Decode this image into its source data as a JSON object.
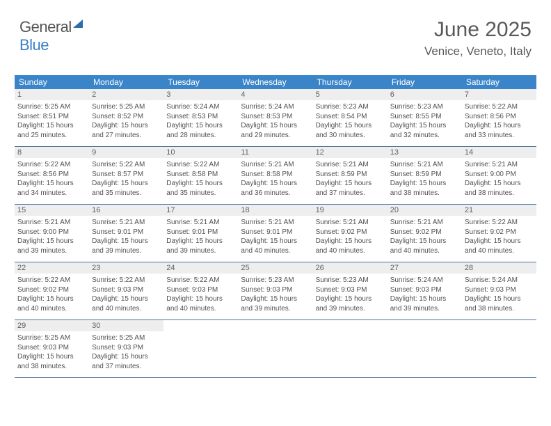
{
  "logo": {
    "text_general": "General",
    "text_blue": "Blue"
  },
  "header": {
    "title": "June 2025",
    "location": "Venice, Veneto, Italy"
  },
  "colors": {
    "header_bg": "#3a85c9",
    "header_text": "#ffffff",
    "daynum_bg": "#eeeeee",
    "week_border": "#4a74a0",
    "text": "#505050",
    "title_text": "#595959",
    "logo_blue": "#3a7fc4"
  },
  "weekdays": [
    "Sunday",
    "Monday",
    "Tuesday",
    "Wednesday",
    "Thursday",
    "Friday",
    "Saturday"
  ],
  "weeks": [
    [
      {
        "n": "1",
        "sr": "Sunrise: 5:25 AM",
        "ss": "Sunset: 8:51 PM",
        "d1": "Daylight: 15 hours",
        "d2": "and 25 minutes."
      },
      {
        "n": "2",
        "sr": "Sunrise: 5:25 AM",
        "ss": "Sunset: 8:52 PM",
        "d1": "Daylight: 15 hours",
        "d2": "and 27 minutes."
      },
      {
        "n": "3",
        "sr": "Sunrise: 5:24 AM",
        "ss": "Sunset: 8:53 PM",
        "d1": "Daylight: 15 hours",
        "d2": "and 28 minutes."
      },
      {
        "n": "4",
        "sr": "Sunrise: 5:24 AM",
        "ss": "Sunset: 8:53 PM",
        "d1": "Daylight: 15 hours",
        "d2": "and 29 minutes."
      },
      {
        "n": "5",
        "sr": "Sunrise: 5:23 AM",
        "ss": "Sunset: 8:54 PM",
        "d1": "Daylight: 15 hours",
        "d2": "and 30 minutes."
      },
      {
        "n": "6",
        "sr": "Sunrise: 5:23 AM",
        "ss": "Sunset: 8:55 PM",
        "d1": "Daylight: 15 hours",
        "d2": "and 32 minutes."
      },
      {
        "n": "7",
        "sr": "Sunrise: 5:22 AM",
        "ss": "Sunset: 8:56 PM",
        "d1": "Daylight: 15 hours",
        "d2": "and 33 minutes."
      }
    ],
    [
      {
        "n": "8",
        "sr": "Sunrise: 5:22 AM",
        "ss": "Sunset: 8:56 PM",
        "d1": "Daylight: 15 hours",
        "d2": "and 34 minutes."
      },
      {
        "n": "9",
        "sr": "Sunrise: 5:22 AM",
        "ss": "Sunset: 8:57 PM",
        "d1": "Daylight: 15 hours",
        "d2": "and 35 minutes."
      },
      {
        "n": "10",
        "sr": "Sunrise: 5:22 AM",
        "ss": "Sunset: 8:58 PM",
        "d1": "Daylight: 15 hours",
        "d2": "and 35 minutes."
      },
      {
        "n": "11",
        "sr": "Sunrise: 5:21 AM",
        "ss": "Sunset: 8:58 PM",
        "d1": "Daylight: 15 hours",
        "d2": "and 36 minutes."
      },
      {
        "n": "12",
        "sr": "Sunrise: 5:21 AM",
        "ss": "Sunset: 8:59 PM",
        "d1": "Daylight: 15 hours",
        "d2": "and 37 minutes."
      },
      {
        "n": "13",
        "sr": "Sunrise: 5:21 AM",
        "ss": "Sunset: 8:59 PM",
        "d1": "Daylight: 15 hours",
        "d2": "and 38 minutes."
      },
      {
        "n": "14",
        "sr": "Sunrise: 5:21 AM",
        "ss": "Sunset: 9:00 PM",
        "d1": "Daylight: 15 hours",
        "d2": "and 38 minutes."
      }
    ],
    [
      {
        "n": "15",
        "sr": "Sunrise: 5:21 AM",
        "ss": "Sunset: 9:00 PM",
        "d1": "Daylight: 15 hours",
        "d2": "and 39 minutes."
      },
      {
        "n": "16",
        "sr": "Sunrise: 5:21 AM",
        "ss": "Sunset: 9:01 PM",
        "d1": "Daylight: 15 hours",
        "d2": "and 39 minutes."
      },
      {
        "n": "17",
        "sr": "Sunrise: 5:21 AM",
        "ss": "Sunset: 9:01 PM",
        "d1": "Daylight: 15 hours",
        "d2": "and 39 minutes."
      },
      {
        "n": "18",
        "sr": "Sunrise: 5:21 AM",
        "ss": "Sunset: 9:01 PM",
        "d1": "Daylight: 15 hours",
        "d2": "and 40 minutes."
      },
      {
        "n": "19",
        "sr": "Sunrise: 5:21 AM",
        "ss": "Sunset: 9:02 PM",
        "d1": "Daylight: 15 hours",
        "d2": "and 40 minutes."
      },
      {
        "n": "20",
        "sr": "Sunrise: 5:21 AM",
        "ss": "Sunset: 9:02 PM",
        "d1": "Daylight: 15 hours",
        "d2": "and 40 minutes."
      },
      {
        "n": "21",
        "sr": "Sunrise: 5:22 AM",
        "ss": "Sunset: 9:02 PM",
        "d1": "Daylight: 15 hours",
        "d2": "and 40 minutes."
      }
    ],
    [
      {
        "n": "22",
        "sr": "Sunrise: 5:22 AM",
        "ss": "Sunset: 9:02 PM",
        "d1": "Daylight: 15 hours",
        "d2": "and 40 minutes."
      },
      {
        "n": "23",
        "sr": "Sunrise: 5:22 AM",
        "ss": "Sunset: 9:03 PM",
        "d1": "Daylight: 15 hours",
        "d2": "and 40 minutes."
      },
      {
        "n": "24",
        "sr": "Sunrise: 5:22 AM",
        "ss": "Sunset: 9:03 PM",
        "d1": "Daylight: 15 hours",
        "d2": "and 40 minutes."
      },
      {
        "n": "25",
        "sr": "Sunrise: 5:23 AM",
        "ss": "Sunset: 9:03 PM",
        "d1": "Daylight: 15 hours",
        "d2": "and 39 minutes."
      },
      {
        "n": "26",
        "sr": "Sunrise: 5:23 AM",
        "ss": "Sunset: 9:03 PM",
        "d1": "Daylight: 15 hours",
        "d2": "and 39 minutes."
      },
      {
        "n": "27",
        "sr": "Sunrise: 5:24 AM",
        "ss": "Sunset: 9:03 PM",
        "d1": "Daylight: 15 hours",
        "d2": "and 39 minutes."
      },
      {
        "n": "28",
        "sr": "Sunrise: 5:24 AM",
        "ss": "Sunset: 9:03 PM",
        "d1": "Daylight: 15 hours",
        "d2": "and 38 minutes."
      }
    ],
    [
      {
        "n": "29",
        "sr": "Sunrise: 5:25 AM",
        "ss": "Sunset: 9:03 PM",
        "d1": "Daylight: 15 hours",
        "d2": "and 38 minutes."
      },
      {
        "n": "30",
        "sr": "Sunrise: 5:25 AM",
        "ss": "Sunset: 9:03 PM",
        "d1": "Daylight: 15 hours",
        "d2": "and 37 minutes."
      },
      {
        "empty": true
      },
      {
        "empty": true
      },
      {
        "empty": true
      },
      {
        "empty": true
      },
      {
        "empty": true
      }
    ]
  ]
}
